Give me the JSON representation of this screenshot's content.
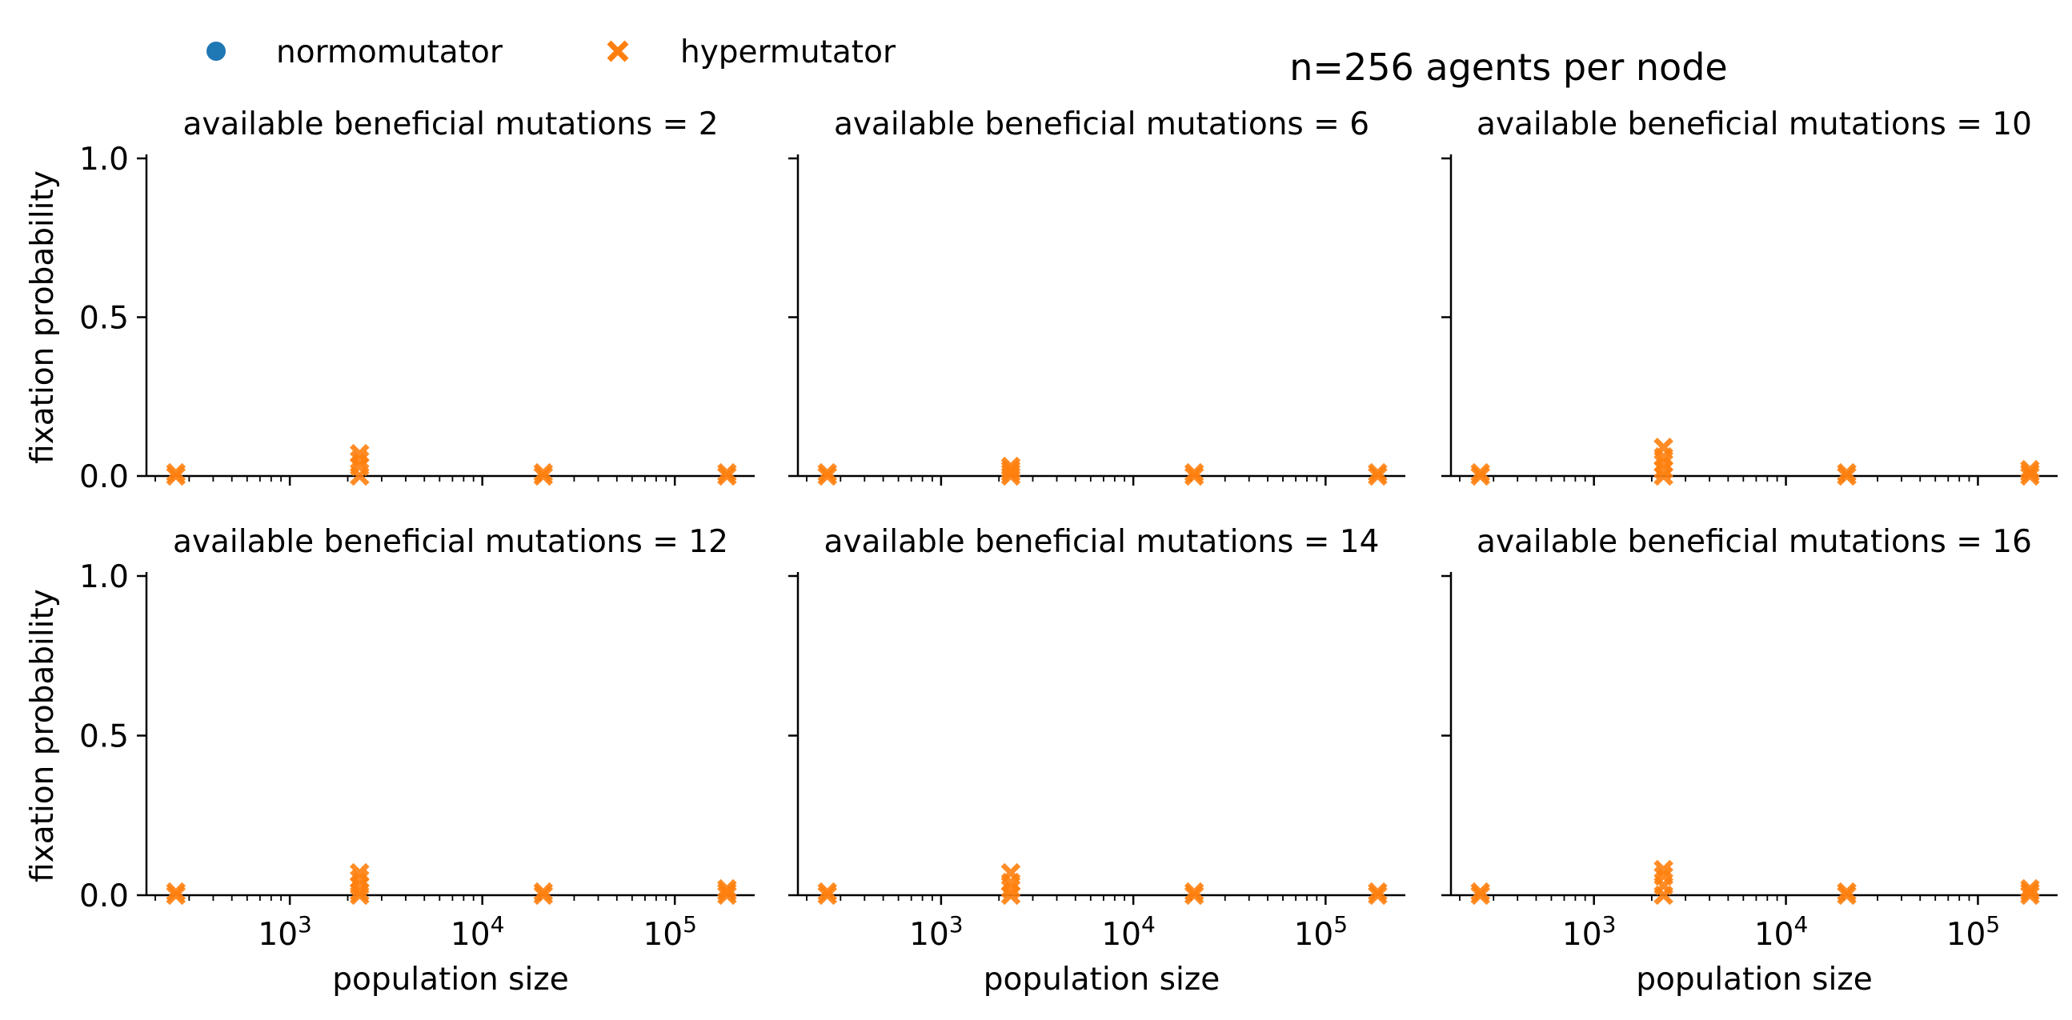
{
  "figure": {
    "suptitle": "n=256 agents per node",
    "legend": {
      "placement": "top-left",
      "entries": [
        {
          "name": "normomutator",
          "marker": "circle",
          "color": "#1f77b4"
        },
        {
          "name": "hypermutator",
          "marker": "x",
          "color": "#ff7f0e"
        }
      ]
    },
    "x_tick_labels": [
      {
        "base": "10",
        "exp": "3"
      },
      {
        "base": "10",
        "exp": "4"
      },
      {
        "base": "10",
        "exp": "5"
      }
    ],
    "y_tick_labels": [
      "0.0",
      "0.5",
      "1.0"
    ]
  },
  "chart_data": [
    {
      "type": "scatter",
      "title": "available beneficial mutations = 2",
      "xlabel": "",
      "ylabel": "fixation probability",
      "xscale": "log",
      "xlim": [
        180,
        260000
      ],
      "ylim": [
        0,
        1.0
      ],
      "grid": false,
      "series": [
        {
          "name": "normomutator",
          "points": []
        },
        {
          "name": "hypermutator",
          "points": [
            [
              256,
              0.0
            ],
            [
              256,
              0.01
            ],
            [
              2304,
              0.0
            ],
            [
              2304,
              0.03
            ],
            [
              2304,
              0.05
            ],
            [
              2304,
              0.07
            ],
            [
              20736,
              0.0
            ],
            [
              20736,
              0.01
            ],
            [
              186624,
              0.0
            ],
            [
              186624,
              0.01
            ]
          ]
        }
      ]
    },
    {
      "type": "scatter",
      "title": "available beneficial mutations = 6",
      "xlabel": "",
      "ylabel": "",
      "xscale": "log",
      "xlim": [
        180,
        260000
      ],
      "ylim": [
        0,
        1.0
      ],
      "grid": false,
      "series": [
        {
          "name": "normomutator",
          "points": []
        },
        {
          "name": "hypermutator",
          "points": [
            [
              256,
              0.0
            ],
            [
              256,
              0.01
            ],
            [
              2304,
              0.0
            ],
            [
              2304,
              0.01
            ],
            [
              2304,
              0.02
            ],
            [
              2304,
              0.03
            ],
            [
              20736,
              0.0
            ],
            [
              20736,
              0.01
            ],
            [
              186624,
              0.0
            ],
            [
              186624,
              0.01
            ]
          ]
        }
      ]
    },
    {
      "type": "scatter",
      "title": "available beneficial mutations = 10",
      "xlabel": "",
      "ylabel": "",
      "xscale": "log",
      "xlim": [
        180,
        260000
      ],
      "ylim": [
        0,
        1.0
      ],
      "grid": false,
      "series": [
        {
          "name": "normomutator",
          "points": []
        },
        {
          "name": "hypermutator",
          "points": [
            [
              256,
              0.0
            ],
            [
              256,
              0.01
            ],
            [
              2304,
              0.0
            ],
            [
              2304,
              0.02
            ],
            [
              2304,
              0.04
            ],
            [
              2304,
              0.06
            ],
            [
              2304,
              0.09
            ],
            [
              20736,
              0.0
            ],
            [
              20736,
              0.01
            ],
            [
              186624,
              0.0
            ],
            [
              186624,
              0.01
            ],
            [
              186624,
              0.02
            ]
          ]
        }
      ]
    },
    {
      "type": "scatter",
      "title": "available beneficial mutations = 12",
      "xlabel": "population size",
      "ylabel": "fixation probability",
      "xscale": "log",
      "xlim": [
        180,
        260000
      ],
      "ylim": [
        0,
        1.0
      ],
      "grid": false,
      "series": [
        {
          "name": "normomutator",
          "points": []
        },
        {
          "name": "hypermutator",
          "points": [
            [
              256,
              0.0
            ],
            [
              256,
              0.01
            ],
            [
              2304,
              0.0
            ],
            [
              2304,
              0.01
            ],
            [
              2304,
              0.03
            ],
            [
              2304,
              0.05
            ],
            [
              2304,
              0.07
            ],
            [
              20736,
              0.0
            ],
            [
              20736,
              0.01
            ],
            [
              186624,
              0.0
            ],
            [
              186624,
              0.01
            ],
            [
              186624,
              0.02
            ]
          ]
        }
      ]
    },
    {
      "type": "scatter",
      "title": "available beneficial mutations = 14",
      "xlabel": "population size",
      "ylabel": "",
      "xscale": "log",
      "xlim": [
        180,
        260000
      ],
      "ylim": [
        0,
        1.0
      ],
      "grid": false,
      "series": [
        {
          "name": "normomutator",
          "points": []
        },
        {
          "name": "hypermutator",
          "points": [
            [
              256,
              0.0
            ],
            [
              256,
              0.01
            ],
            [
              2304,
              0.0
            ],
            [
              2304,
              0.02
            ],
            [
              2304,
              0.04
            ],
            [
              2304,
              0.07
            ],
            [
              20736,
              0.0
            ],
            [
              20736,
              0.01
            ],
            [
              186624,
              0.0
            ],
            [
              186624,
              0.01
            ]
          ]
        }
      ]
    },
    {
      "type": "scatter",
      "title": "available beneficial mutations = 16",
      "xlabel": "population size",
      "ylabel": "",
      "xscale": "log",
      "xlim": [
        180,
        260000
      ],
      "ylim": [
        0,
        1.0
      ],
      "grid": false,
      "series": [
        {
          "name": "normomutator",
          "points": []
        },
        {
          "name": "hypermutator",
          "points": [
            [
              256,
              0.0
            ],
            [
              256,
              0.01
            ],
            [
              2304,
              0.0
            ],
            [
              2304,
              0.03
            ],
            [
              2304,
              0.06
            ],
            [
              2304,
              0.08
            ],
            [
              20736,
              0.0
            ],
            [
              20736,
              0.01
            ],
            [
              186624,
              0.0
            ],
            [
              186624,
              0.01
            ],
            [
              186624,
              0.02
            ]
          ]
        }
      ]
    }
  ]
}
